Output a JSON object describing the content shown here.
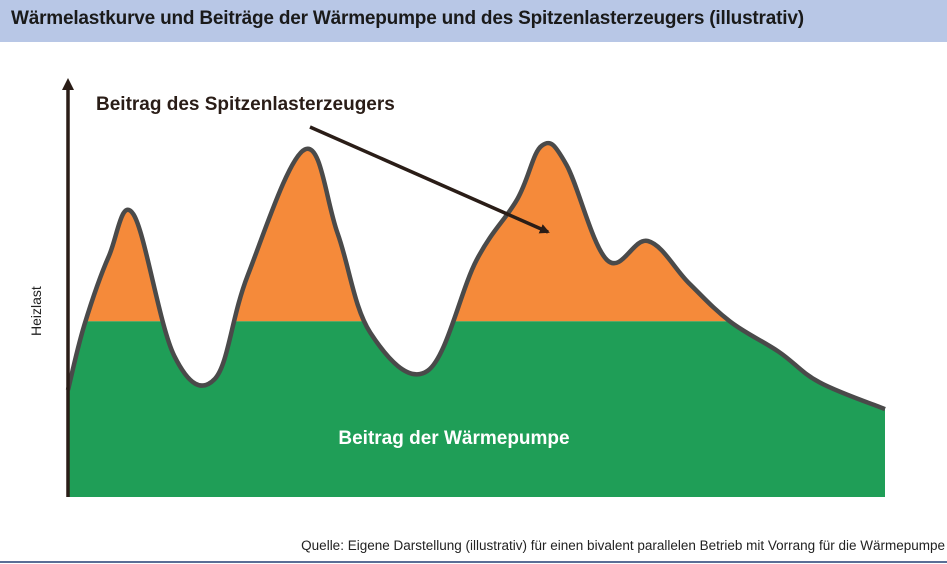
{
  "header": {
    "title": "Wärmelastkurve und Beiträge der Wärmepumpe und des Spitzenlasterzeugers (illustrativ)",
    "background": "#b8c7e6"
  },
  "chart_data": {
    "type": "area",
    "ylabel": "Heizlast",
    "xlabel": "",
    "annotations": {
      "peak_label": "Beitrag des Spitzenlasterzeugers",
      "base_label": "Beitrag der Wärmepumpe"
    },
    "ylim": [
      0,
      100
    ],
    "heat_pump_level": 46,
    "curve": {
      "x": [
        0,
        2,
        5,
        8,
        13,
        18,
        22,
        29,
        33,
        37,
        44,
        50,
        55,
        58,
        61,
        66,
        71,
        76,
        81,
        87,
        92,
        100
      ],
      "y": [
        28,
        45,
        63,
        74,
        37,
        31,
        58,
        91,
        69,
        43,
        33,
        62,
        78,
        92,
        87,
        62,
        67,
        56,
        46,
        38,
        30,
        23
      ]
    },
    "colors": {
      "heat_pump": "#1f9e57",
      "peak_load": "#f58a3a",
      "curve": "#4a4a4a",
      "axis": "#2a1d17"
    }
  },
  "footer": {
    "source": "Quelle: Eigene Darstellung (illustrativ) für einen bivalent parallelen Betrieb mit Vorrang für die Wärmepumpe"
  }
}
